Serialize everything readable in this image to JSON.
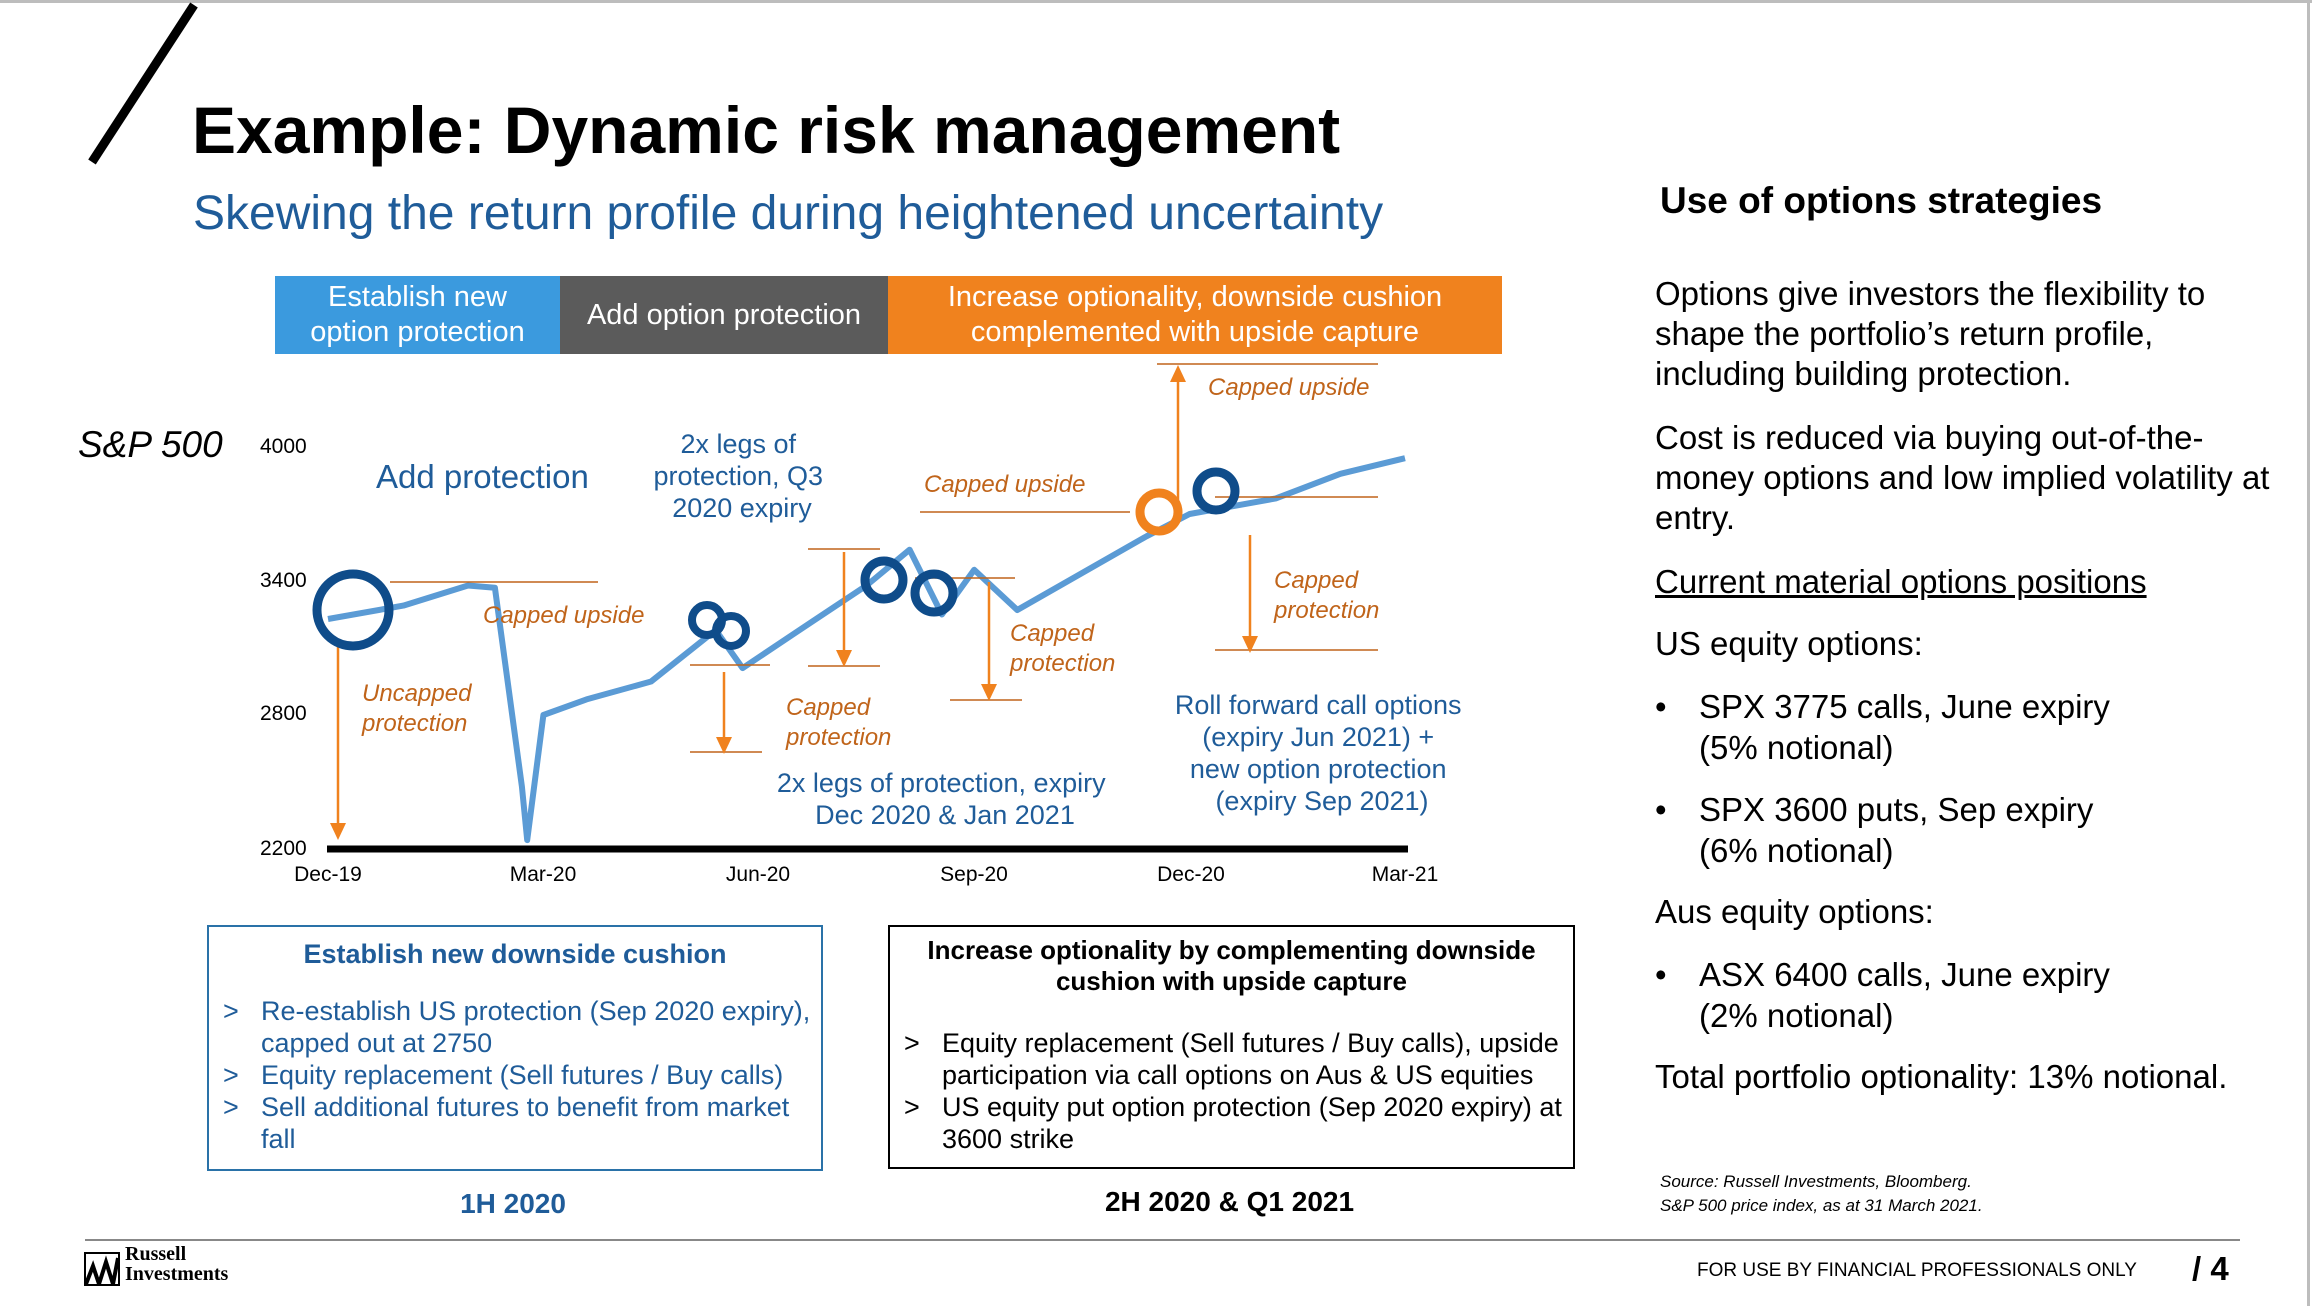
{
  "slide": {
    "title": "Example: Dynamic risk management",
    "subtitle": "Skewing the return profile during heightened uncertainty"
  },
  "phases": [
    {
      "label": "Establish new option protection",
      "color": "#3b9ade"
    },
    {
      "label": "Add option protection",
      "color": "#5b5b5b"
    },
    {
      "label": "Increase optionality, downside cushion complemented with upside capture",
      "color": "#f0821e"
    }
  ],
  "chart_data": {
    "type": "line",
    "title": "",
    "ylabel": "S&P 500",
    "xlabel": "",
    "ylim": [
      2200,
      4000
    ],
    "yticks": [
      4000,
      3400,
      2800,
      2200
    ],
    "xticks": [
      "Dec-19",
      "Mar-20",
      "Jun-20",
      "Sep-20",
      "Dec-20",
      "Mar-21"
    ],
    "series": [
      {
        "name": "",
        "color": "#5b9bd5",
        "x": [
          "Dec-19",
          "Jan-20",
          "Feb-20",
          "Feb-20",
          "Mar-20",
          "Mar-20",
          "Apr-20",
          "Apr-20",
          "May-20",
          "Jun-20",
          "Jun-20",
          "Jul-20",
          "Aug-20",
          "Sep-20",
          "Sep-20",
          "Oct-20",
          "Oct-20",
          "Nov-20",
          "Dec-20",
          "Jan-21",
          "Feb-21",
          "Mar-21"
        ],
        "values": [
          3230,
          3290,
          3380,
          3370,
          2480,
          2240,
          2800,
          2870,
          2950,
          3180,
          3010,
          3220,
          3380,
          3540,
          3250,
          3450,
          3270,
          3600,
          3700,
          3770,
          3880,
          3950
        ]
      }
    ],
    "annotations": {
      "add_protection": "Add protection",
      "two_legs_q3": [
        "2x legs of",
        "protection, Q3",
        "2020 expiry"
      ],
      "capped_upside_1": "Capped upside",
      "uncapped_protection": [
        "Uncapped",
        "protection"
      ],
      "capped_upside_2": "Capped upside",
      "capped_protection_1": [
        "Capped",
        "protection"
      ],
      "capped_protection_2": [
        "Capped",
        "protection"
      ],
      "capped_upside_3": "Capped upside",
      "capped_protection_3": [
        "Capped",
        "protection"
      ],
      "two_legs_dec": [
        "2x legs of protection, expiry",
        "Dec 2020 & Jan 2021"
      ],
      "roll_forward": [
        "Roll forward call options",
        "(expiry Jun 2021) +",
        "new option protection",
        "(expiry Sep 2021)"
      ]
    }
  },
  "sp500_label": "S&P 500",
  "box_1h": {
    "title": "Establish new downside cushion",
    "bullet_marker": ">",
    "items": [
      "Re-establish US protection (Sep 2020 expiry), capped out at 2750",
      "Equity replacement (Sell futures / Buy calls)",
      "Sell additional futures to benefit from market fall"
    ],
    "period": "1H 2020"
  },
  "box_2h": {
    "title": "Increase optionality by complementing downside cushion with upside capture",
    "bullet_marker": ">",
    "items": [
      "Equity replacement (Sell futures / Buy calls), upside participation via call options on Aus & US equities",
      "US equity put option protection (Sep 2020 expiry) at 3600 strike"
    ],
    "period": "2H 2020 & Q1 2021"
  },
  "right_panel": {
    "heading": "Use of options strategies",
    "para1": "Options give investors the flexibility to shape the portfolio’s return profile, including building protection.",
    "para2": "Cost is reduced via buying out-of-the-money options and low implied volatility at entry.",
    "positions_heading": "Current material options positions",
    "us_heading": "US equity options:",
    "bullet_char": "•",
    "us_items": [
      "SPX 3775 calls, June expiry (5% notional)",
      "SPX 3600 puts, Sep expiry (6% notional)"
    ],
    "aus_heading": "Aus equity options:",
    "aus_items": [
      "ASX 6400 calls, June expiry (2% notional)"
    ],
    "total": "Total portfolio optionality: 13% notional."
  },
  "source": {
    "line1": "Source:  Russell Investments, Bloomberg.",
    "line2": "S&P 500 price index, as at 31 March 2021."
  },
  "footer": {
    "logo_line1": "Russell",
    "logo_line2": "Investments",
    "disclaimer": "FOR USE BY FINANCIAL PROFESSIONALS ONLY",
    "page_number": "/  4"
  }
}
